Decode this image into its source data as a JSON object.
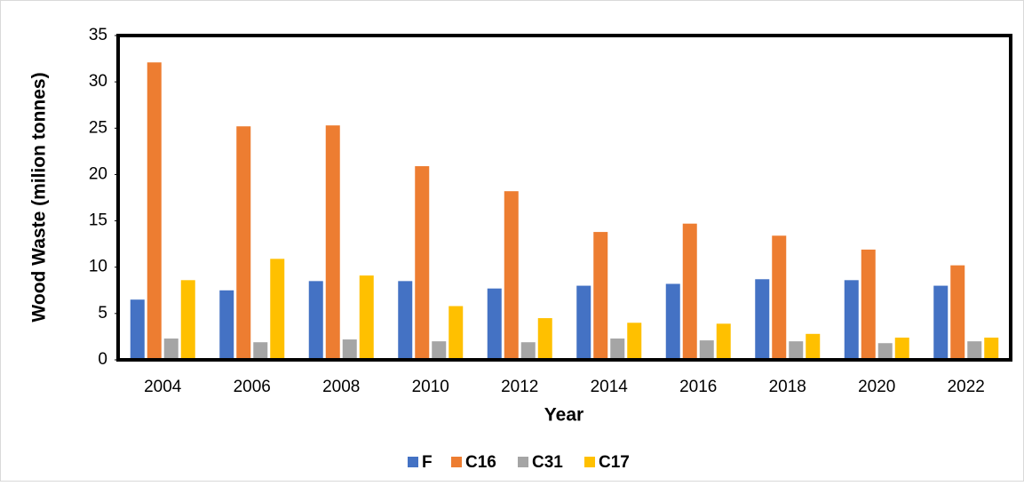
{
  "chart_data": {
    "type": "bar",
    "xlabel": "Year",
    "ylabel": "Wood Waste (milion tonnes)",
    "categories": [
      "2004",
      "2006",
      "2008",
      "2010",
      "2012",
      "2014",
      "2016",
      "2018",
      "2020",
      "2022"
    ],
    "series": [
      {
        "name": "F",
        "color": "#4472c4",
        "values": [
          6.5,
          7.5,
          8.5,
          8.5,
          7.7,
          8.0,
          8.2,
          8.7,
          8.6,
          8.0
        ]
      },
      {
        "name": "C16",
        "color": "#ed7d31",
        "values": [
          32.1,
          25.2,
          25.3,
          20.9,
          18.2,
          13.8,
          14.7,
          13.4,
          11.9,
          10.2
        ]
      },
      {
        "name": "C31",
        "color": "#a5a5a5",
        "values": [
          2.3,
          1.9,
          2.2,
          2.0,
          1.9,
          2.3,
          2.1,
          2.0,
          1.8,
          2.0
        ]
      },
      {
        "name": "C17",
        "color": "#ffc000",
        "values": [
          8.6,
          10.9,
          9.1,
          5.8,
          4.5,
          4.0,
          3.9,
          2.8,
          2.4,
          2.4
        ]
      }
    ],
    "ylim": [
      0,
      35
    ],
    "yticks": [
      0,
      5,
      10,
      15,
      20,
      25,
      30,
      35
    ],
    "grid": false,
    "legend": "bottom"
  }
}
